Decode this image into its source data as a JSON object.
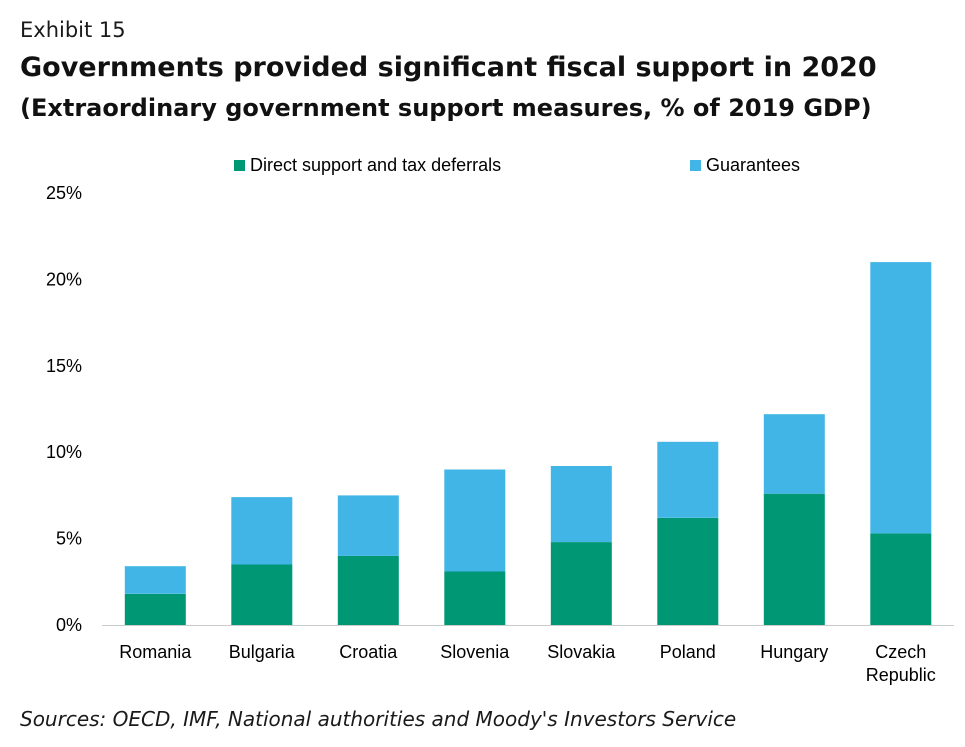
{
  "header": {
    "exhibit": "Exhibit 15",
    "title": "Governments provided significant fiscal support in 2020",
    "subtitle": "(Extraordinary government support measures, % of 2019 GDP)"
  },
  "source": "Sources: OECD, IMF, National authorities and Moody's Investors Service",
  "colors": {
    "direct": "#009775",
    "guarantees": "#41b6e6"
  },
  "chart_data": {
    "type": "bar",
    "stacked": true,
    "categories": [
      "Romania",
      "Bulgaria",
      "Croatia",
      "Slovenia",
      "Slovakia",
      "Poland",
      "Hungary",
      "Czech Republic"
    ],
    "category_lines": [
      [
        "Romania"
      ],
      [
        "Bulgaria"
      ],
      [
        "Croatia"
      ],
      [
        "Slovenia"
      ],
      [
        "Slovakia"
      ],
      [
        "Poland"
      ],
      [
        "Hungary"
      ],
      [
        "Czech",
        "Republic"
      ]
    ],
    "series": [
      {
        "name": "Direct support and tax deferrals",
        "values": [
          1.8,
          3.5,
          4.0,
          3.1,
          4.8,
          6.2,
          7.6,
          5.3
        ]
      },
      {
        "name": "Guarantees",
        "values": [
          1.6,
          3.9,
          3.5,
          5.9,
          4.4,
          4.4,
          4.6,
          15.7
        ]
      }
    ],
    "ylim": [
      0,
      25
    ],
    "yticks": [
      0,
      5,
      10,
      15,
      20,
      25
    ],
    "ytick_labels": [
      "0%",
      "5%",
      "10%",
      "15%",
      "20%",
      "25%"
    ],
    "xlabel": "",
    "ylabel": "",
    "legend_position": "top",
    "grid": false
  }
}
